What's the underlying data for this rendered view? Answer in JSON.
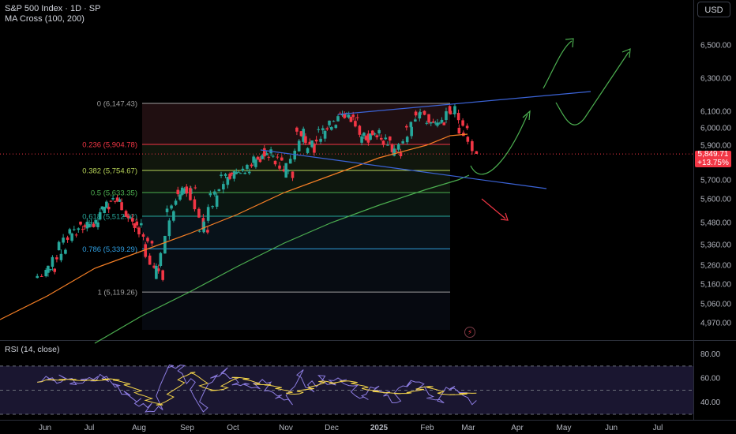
{
  "header": {
    "title": "S&P 500 Index · 1D · SP",
    "indicator": "MA Cross (100, 200)"
  },
  "currency_button": "USD",
  "price_badge": {
    "price": "5,849.71",
    "change": "+13.75%"
  },
  "rsi_label": "RSI (14, close)",
  "colors": {
    "up": "#26a69a",
    "down": "#f23645",
    "ma100": "#f57f25",
    "ma200": "#4caf50",
    "rsi": "#8c7ce0",
    "rsi_ma": "#f2d34a",
    "channel": "#3b63d6",
    "drawing": "#4caf50"
  },
  "icons": [
    "lightning-icon"
  ],
  "chart_data": {
    "type": "candlestick",
    "title": "S&P 500 Index · 1D · SP",
    "y_ticks": [
      "6,500.00",
      "6,300.00",
      "6,100.00",
      "6,000.00",
      "5,900.00",
      "5,700.00",
      "5,600.00",
      "5,480.00",
      "5,360.00",
      "5,260.00",
      "5,160.00",
      "5,060.00",
      "4,970.00"
    ],
    "x_ticks": [
      "Jun",
      "Jul",
      "Aug",
      "Sep",
      "Oct",
      "Nov",
      "Dec",
      "2025",
      "Feb",
      "Mar",
      "Apr",
      "May",
      "Jun",
      "Jul"
    ],
    "fib_levels": [
      {
        "label": "0 (6,147.43)",
        "value": 6147.43,
        "color": "#9e9e9e"
      },
      {
        "label": "0.236 (5,904.78)",
        "value": 5904.78,
        "color": "#f23645"
      },
      {
        "label": "0.382 (5,754.67)",
        "value": 5754.67,
        "color": "#b8d458"
      },
      {
        "label": "0.5 (5,633.35)",
        "value": 5633.35,
        "color": "#4caf50"
      },
      {
        "label": "0.618 (5,512.02)",
        "value": 5512.02,
        "color": "#26a69a"
      },
      {
        "label": "0.786 (5,339.29)",
        "value": 5339.29,
        "color": "#2f9ee0"
      },
      {
        "label": "1 (5,119.26)",
        "value": 5119.26,
        "color": "#9e9e9e"
      }
    ],
    "last_price": 5849.71,
    "candles": [
      {
        "date": "2024-05-27",
        "close": 5235
      },
      {
        "date": "2024-06-03",
        "close": 5346
      },
      {
        "date": "2024-06-10",
        "close": 5431
      },
      {
        "date": "2024-06-17",
        "close": 5464
      },
      {
        "date": "2024-06-24",
        "close": 5460
      },
      {
        "date": "2024-07-01",
        "close": 5567
      },
      {
        "date": "2024-07-08",
        "close": 5615
      },
      {
        "date": "2024-07-15",
        "close": 5505
      },
      {
        "date": "2024-07-22",
        "close": 5459
      },
      {
        "date": "2024-07-29",
        "close": 5346
      },
      {
        "date": "2024-08-05",
        "close": 5186
      },
      {
        "date": "2024-08-12",
        "close": 5554
      },
      {
        "date": "2024-08-19",
        "close": 5634
      },
      {
        "date": "2024-08-26",
        "close": 5648
      },
      {
        "date": "2024-09-03",
        "close": 5408
      },
      {
        "date": "2024-09-09",
        "close": 5626
      },
      {
        "date": "2024-09-16",
        "close": 5702
      },
      {
        "date": "2024-09-23",
        "close": 5738
      },
      {
        "date": "2024-09-30",
        "close": 5751
      },
      {
        "date": "2024-10-07",
        "close": 5815
      },
      {
        "date": "2024-10-14",
        "close": 5864
      },
      {
        "date": "2024-10-21",
        "close": 5808
      },
      {
        "date": "2024-10-28",
        "close": 5728
      },
      {
        "date": "2024-11-04",
        "close": 5995
      },
      {
        "date": "2024-11-11",
        "close": 5870
      },
      {
        "date": "2024-11-18",
        "close": 5969
      },
      {
        "date": "2024-11-25",
        "close": 6032
      },
      {
        "date": "2024-12-02",
        "close": 6090
      },
      {
        "date": "2024-12-09",
        "close": 6051
      },
      {
        "date": "2024-12-16",
        "close": 5930
      },
      {
        "date": "2024-12-23",
        "close": 5970
      },
      {
        "date": "2024-12-30",
        "close": 5942
      },
      {
        "date": "2025-01-06",
        "close": 5827
      },
      {
        "date": "2025-01-13",
        "close": 5997
      },
      {
        "date": "2025-01-21",
        "close": 6101
      },
      {
        "date": "2025-01-27",
        "close": 6040
      },
      {
        "date": "2025-02-03",
        "close": 6026
      },
      {
        "date": "2025-02-10",
        "close": 6115
      },
      {
        "date": "2025-02-18",
        "close": 6013
      },
      {
        "date": "2025-02-24",
        "close": 5849.71
      }
    ],
    "rsi": {
      "y_ticks": [
        "80.00",
        "60.00",
        "40.00"
      ],
      "upper_band": 70,
      "lower_band": 30
    }
  }
}
